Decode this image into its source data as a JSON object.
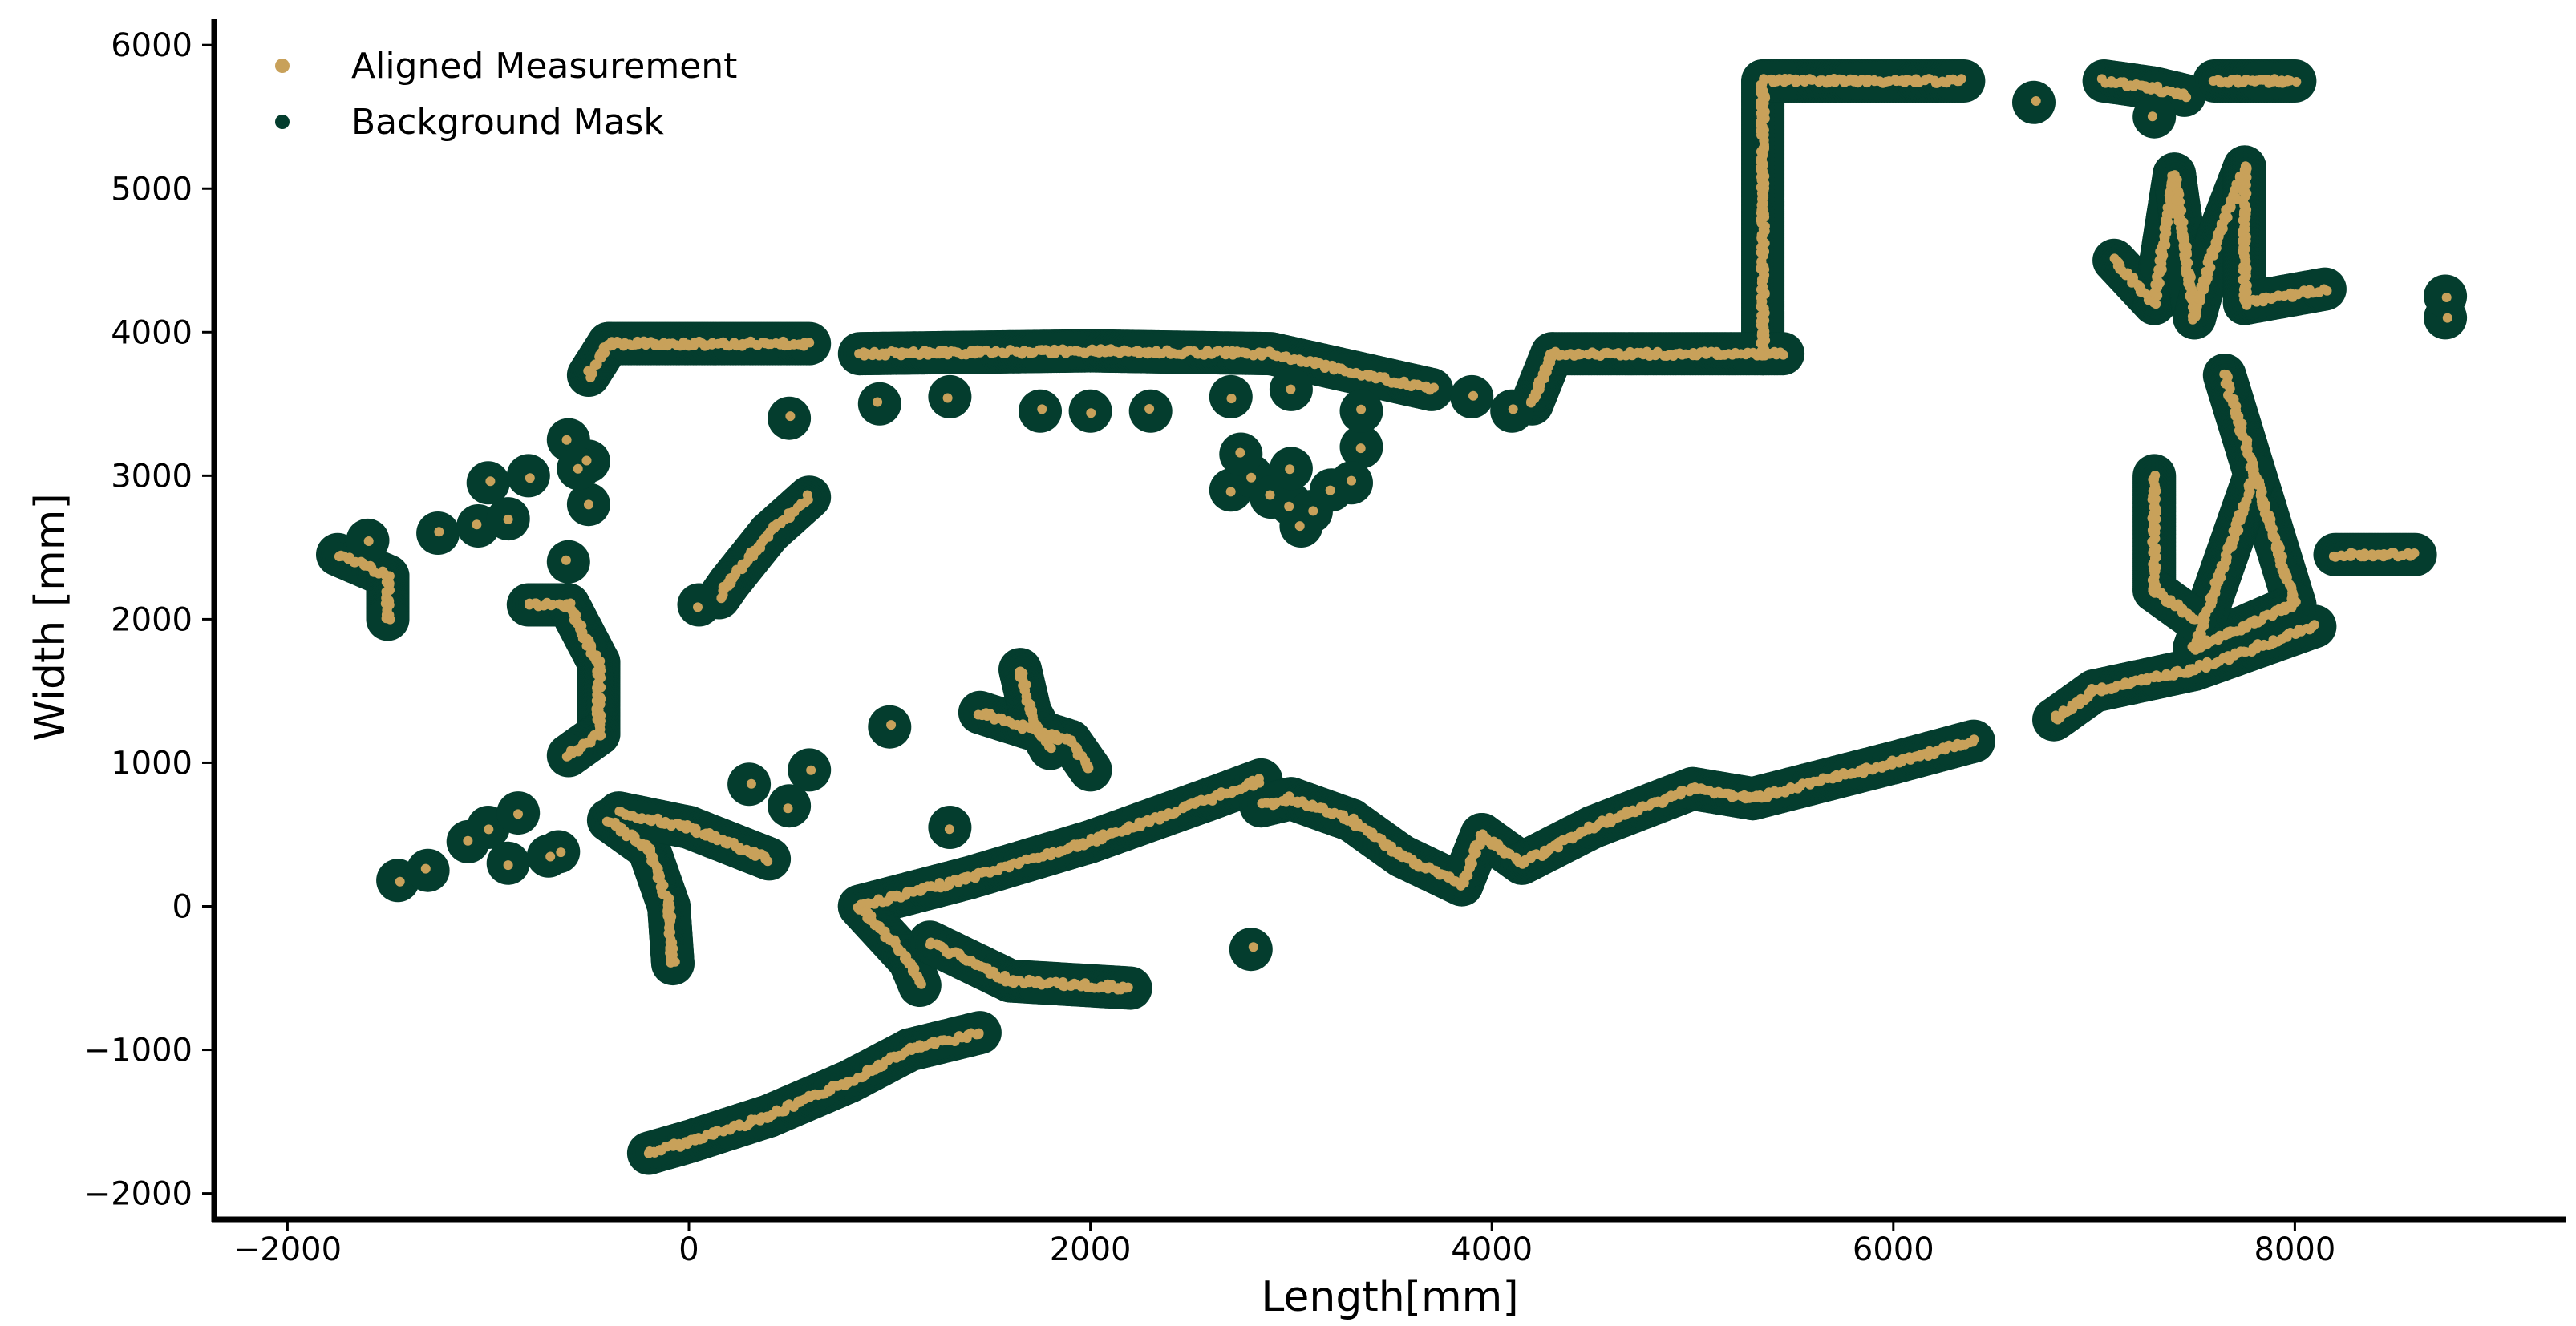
{
  "chart_data": {
    "type": "scatter",
    "xlabel": "Length[mm]",
    "ylabel": "Width [mm]",
    "xlim": [
      -2400,
      9350
    ],
    "ylim": [
      -2150,
      6200
    ],
    "xticks": [
      -2000,
      0,
      2000,
      4000,
      6000,
      8000
    ],
    "yticks": [
      -2000,
      -1000,
      0,
      1000,
      2000,
      3000,
      4000,
      5000,
      6000
    ],
    "xtick_labels": [
      "−2000",
      "0",
      "2000",
      "4000",
      "6000",
      "8000"
    ],
    "ytick_labels": [
      "−2000",
      "−1000",
      "0",
      "1000",
      "2000",
      "3000",
      "4000",
      "5000",
      "6000"
    ],
    "grid": false,
    "legend_position": "top-left",
    "series": [
      {
        "name": "Aligned Measurement",
        "color": "#c8a15a",
        "marker_size": "small",
        "polylines": [
          [
            [
              -200,
              -1720
            ],
            [
              0,
              -1640
            ],
            [
              400,
              -1460
            ],
            [
              800,
              -1220
            ],
            [
              1100,
              -1000
            ],
            [
              1450,
              -880
            ]
          ],
          [
            [
              850,
              0
            ],
            [
              1400,
              200
            ],
            [
              2000,
              450
            ],
            [
              2600,
              750
            ],
            [
              2850,
              880
            ]
          ],
          [
            [
              850,
              0
            ],
            [
              1100,
              -380
            ],
            [
              1150,
              -550
            ]
          ],
          [
            [
              1200,
              -250
            ],
            [
              1600,
              -520
            ],
            [
              2200,
              -570
            ]
          ],
          [
            [
              2850,
              700
            ],
            [
              3000,
              750
            ],
            [
              3300,
              600
            ],
            [
              3550,
              350
            ],
            [
              3850,
              150
            ],
            [
              3950,
              500
            ],
            [
              4150,
              300
            ],
            [
              4500,
              550
            ],
            [
              5000,
              820
            ],
            [
              5300,
              750
            ],
            [
              6000,
              1000
            ],
            [
              6400,
              1150
            ]
          ],
          [
            [
              5350,
              3850
            ],
            [
              5350,
              5750
            ],
            [
              6350,
              5750
            ]
          ],
          [
            [
              -500,
              3700
            ],
            [
              -400,
              3920
            ],
            [
              600,
              3920
            ]
          ],
          [
            [
              850,
              3850
            ],
            [
              2000,
              3870
            ],
            [
              2900,
              3850
            ],
            [
              3700,
              3600
            ]
          ],
          [
            [
              4200,
              3500
            ],
            [
              4300,
              3850
            ],
            [
              5450,
              3850
            ]
          ],
          [
            [
              -800,
              2100
            ],
            [
              -600,
              2100
            ],
            [
              -450,
              1700
            ],
            [
              -450,
              1200
            ],
            [
              -600,
              1050
            ]
          ],
          [
            [
              -400,
              600
            ],
            [
              -200,
              400
            ],
            [
              -100,
              0
            ],
            [
              -80,
              -400
            ]
          ],
          [
            [
              -350,
              650
            ],
            [
              0,
              550
            ],
            [
              400,
              330
            ]
          ],
          [
            [
              6800,
              1300
            ],
            [
              7000,
              1500
            ],
            [
              7500,
              1650
            ],
            [
              8100,
              1950
            ]
          ],
          [
            [
              7650,
              3700
            ],
            [
              8000,
              2100
            ],
            [
              7500,
              1800
            ],
            [
              7800,
              3000
            ]
          ],
          [
            [
              7300,
              3000
            ],
            [
              7300,
              2200
            ],
            [
              7500,
              2000
            ]
          ],
          [
            [
              7100,
              4500
            ],
            [
              7300,
              4200
            ],
            [
              7400,
              5100
            ],
            [
              7500,
              4100
            ],
            [
              7600,
              4600
            ],
            [
              7750,
              5150
            ],
            [
              7750,
              4200
            ],
            [
              8150,
              4300
            ]
          ],
          [
            [
              7050,
              5750
            ],
            [
              7300,
              5700
            ],
            [
              7450,
              5650
            ]
          ],
          [
            [
              7600,
              5750
            ],
            [
              8000,
              5750
            ]
          ],
          [
            [
              -1750,
              2450
            ],
            [
              -1500,
              2300
            ],
            [
              -1500,
              2000
            ]
          ],
          [
            [
              1450,
              1350
            ],
            [
              1900,
              1150
            ],
            [
              2000,
              950
            ]
          ],
          [
            [
              1650,
              1650
            ],
            [
              1700,
              1350
            ],
            [
              1800,
              1100
            ]
          ],
          [
            [
              600,
              2850
            ],
            [
              400,
              2600
            ],
            [
              200,
              2250
            ],
            [
              150,
              2150
            ]
          ],
          [
            [
              8200,
              2450
            ],
            [
              8600,
              2450
            ]
          ]
        ],
        "points": [
          [
            -1450,
            180
          ],
          [
            -1300,
            250
          ],
          [
            -1100,
            450
          ],
          [
            -1000,
            550
          ],
          [
            -850,
            650
          ],
          [
            -900,
            300
          ],
          [
            -700,
            350
          ],
          [
            -650,
            380
          ],
          [
            -1250,
            2600
          ],
          [
            -1050,
            2650
          ],
          [
            -1000,
            2950
          ],
          [
            -900,
            2700
          ],
          [
            -800,
            3000
          ],
          [
            -1600,
            2550
          ],
          [
            -600,
            3250
          ],
          [
            -500,
            3100
          ],
          [
            -500,
            2800
          ],
          [
            -600,
            2400
          ],
          [
            -550,
            3050
          ],
          [
            1000,
            1250
          ],
          [
            1300,
            550
          ],
          [
            2800,
            -300
          ],
          [
            600,
            950
          ],
          [
            500,
            3400
          ],
          [
            50,
            2100
          ],
          [
            300,
            850
          ],
          [
            500,
            700
          ],
          [
            2700,
            2900
          ],
          [
            2800,
            3000
          ],
          [
            2900,
            2850
          ],
          [
            3000,
            2800
          ],
          [
            3100,
            2750
          ],
          [
            3050,
            2650
          ],
          [
            3200,
            2900
          ],
          [
            2750,
            3150
          ],
          [
            3350,
            3200
          ],
          [
            3300,
            2950
          ],
          [
            3000,
            3050
          ],
          [
            950,
            3500
          ],
          [
            1300,
            3550
          ],
          [
            1750,
            3450
          ],
          [
            2000,
            3450
          ],
          [
            2300,
            3450
          ],
          [
            2700,
            3550
          ],
          [
            3000,
            3600
          ],
          [
            3350,
            3450
          ],
          [
            3900,
            3550
          ],
          [
            4100,
            3450
          ],
          [
            8750,
            4100
          ],
          [
            8750,
            4250
          ],
          [
            6700,
            5600
          ],
          [
            7300,
            5500
          ]
        ]
      },
      {
        "name": "Background Mask",
        "color": "#043d2e",
        "marker_size": "large",
        "note_shape": "dilated envelope around measurement"
      }
    ]
  }
}
